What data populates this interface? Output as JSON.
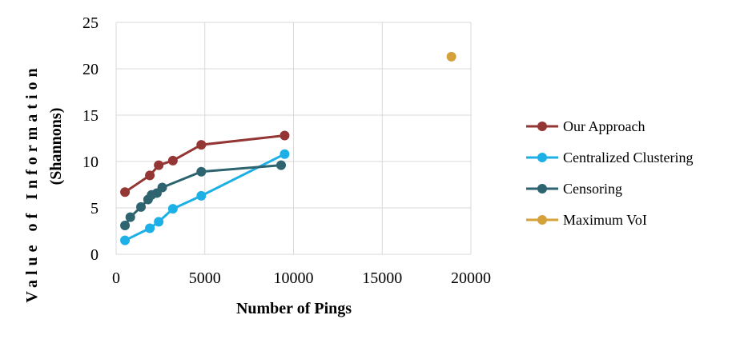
{
  "chart_data": {
    "type": "scatter",
    "xlabel": "Number of Pings",
    "ylabel_line1": "Value of Information",
    "ylabel_line2": "(Shannons)",
    "xlim": [
      0,
      20000
    ],
    "ylim": [
      0,
      25
    ],
    "x_ticks": [
      0,
      5000,
      10000,
      15000,
      20000
    ],
    "y_ticks": [
      0,
      5,
      10,
      15,
      20,
      25
    ],
    "grid": true,
    "legend_position": "right",
    "series": [
      {
        "name": "Our Approach",
        "color": "#943634",
        "connected": true,
        "x": [
          500,
          1900,
          2400,
          3200,
          4800,
          9500
        ],
        "y": [
          6.7,
          8.5,
          9.6,
          10.1,
          11.8,
          12.8
        ]
      },
      {
        "name": "Centralized Clustering",
        "color": "#1CB0E6",
        "connected": true,
        "x": [
          500,
          1900,
          2400,
          3200,
          4800,
          9500
        ],
        "y": [
          1.5,
          2.8,
          3.5,
          4.9,
          6.3,
          10.8
        ]
      },
      {
        "name": "Censoring",
        "color": "#2E6470",
        "connected": true,
        "x": [
          500,
          800,
          1400,
          1800,
          2000,
          2300,
          2600,
          4800,
          9300
        ],
        "y": [
          3.1,
          4.0,
          5.1,
          5.9,
          6.4,
          6.6,
          7.2,
          8.9,
          9.6
        ]
      },
      {
        "name": "Maximum VoI",
        "color": "#D4A13A",
        "connected": false,
        "x": [
          18900
        ],
        "y": [
          21.3
        ]
      }
    ]
  }
}
